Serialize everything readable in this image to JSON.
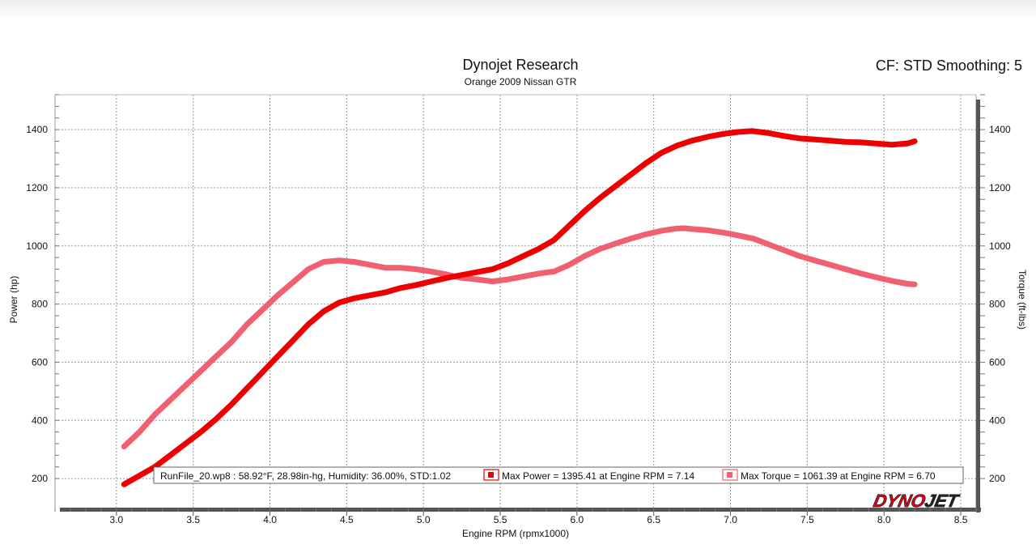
{
  "header": {
    "title": "Dynojet Research",
    "subtitle": "Orange 2009 Nissan GTR",
    "cf_text": "CF: STD Smoothing: 5"
  },
  "legend": {
    "run_info": "RunFile_20.wp8  : 58.92°F, 28.98in-hg, Humidity: 36.00%, STD:1.02",
    "max_power": "Max Power = 1395.41 at Engine RPM = 7.14",
    "max_torque": "Max Torque = 1061.39 at Engine RPM = 6.70"
  },
  "logo": {
    "text": "DYNOJET",
    "part1": "DYNO",
    "part2": "JET"
  },
  "colors": {
    "power": "#ee0000",
    "torque": "#f06070",
    "grid": "#999999",
    "frame": "#888888"
  },
  "chart_data": {
    "type": "line",
    "xlabel": "Engine RPM (rpmx1000)",
    "ylabel": "Power (hp)",
    "y2label": "Torque (ft-lbs)",
    "xlim": [
      2.6,
      8.6
    ],
    "ylim": [
      100,
      1520
    ],
    "xticks": [
      "3.0",
      "3.5",
      "4.0",
      "4.5",
      "5.0",
      "5.5",
      "6.0",
      "6.5",
      "7.0",
      "7.5",
      "8.0",
      "8.5"
    ],
    "yticks": [
      "200",
      "400",
      "600",
      "800",
      "1000",
      "1200",
      "1400"
    ],
    "y2ticks": [
      "200",
      "400",
      "600",
      "800",
      "1000",
      "1200",
      "1400"
    ],
    "grid": true,
    "series": [
      {
        "name": "Power",
        "x": [
          3.05,
          3.15,
          3.25,
          3.35,
          3.45,
          3.55,
          3.65,
          3.75,
          3.85,
          3.95,
          4.05,
          4.15,
          4.25,
          4.35,
          4.45,
          4.55,
          4.65,
          4.75,
          4.85,
          4.95,
          5.05,
          5.15,
          5.25,
          5.35,
          5.45,
          5.55,
          5.65,
          5.75,
          5.85,
          5.95,
          6.05,
          6.15,
          6.25,
          6.35,
          6.45,
          6.55,
          6.65,
          6.75,
          6.85,
          6.95,
          7.05,
          7.14,
          7.25,
          7.35,
          7.45,
          7.55,
          7.65,
          7.75,
          7.85,
          7.95,
          8.05,
          8.15,
          8.2
        ],
        "values": [
          180,
          210,
          240,
          280,
          320,
          360,
          405,
          455,
          510,
          565,
          620,
          675,
          730,
          775,
          805,
          820,
          830,
          840,
          855,
          865,
          878,
          890,
          900,
          910,
          920,
          940,
          965,
          990,
          1020,
          1070,
          1120,
          1165,
          1205,
          1245,
          1285,
          1320,
          1345,
          1362,
          1375,
          1385,
          1392,
          1395,
          1388,
          1378,
          1370,
          1366,
          1362,
          1358,
          1356,
          1352,
          1348,
          1352,
          1360
        ]
      },
      {
        "name": "Torque",
        "x": [
          3.05,
          3.15,
          3.25,
          3.35,
          3.45,
          3.55,
          3.65,
          3.75,
          3.85,
          3.95,
          4.05,
          4.15,
          4.25,
          4.35,
          4.45,
          4.55,
          4.65,
          4.75,
          4.85,
          4.95,
          5.05,
          5.15,
          5.25,
          5.35,
          5.45,
          5.55,
          5.65,
          5.75,
          5.85,
          5.95,
          6.05,
          6.15,
          6.25,
          6.35,
          6.45,
          6.55,
          6.65,
          6.7,
          6.75,
          6.85,
          6.95,
          7.05,
          7.15,
          7.25,
          7.35,
          7.45,
          7.55,
          7.65,
          7.75,
          7.85,
          7.95,
          8.05,
          8.15,
          8.2
        ],
        "values": [
          310,
          360,
          420,
          470,
          520,
          570,
          620,
          670,
          730,
          780,
          830,
          875,
          920,
          945,
          950,
          945,
          935,
          925,
          925,
          920,
          912,
          902,
          890,
          885,
          878,
          885,
          895,
          905,
          912,
          935,
          965,
          990,
          1008,
          1025,
          1040,
          1052,
          1060,
          1061,
          1058,
          1054,
          1046,
          1036,
          1025,
          1005,
          985,
          965,
          950,
          935,
          920,
          905,
          892,
          880,
          870,
          868
        ]
      }
    ]
  }
}
